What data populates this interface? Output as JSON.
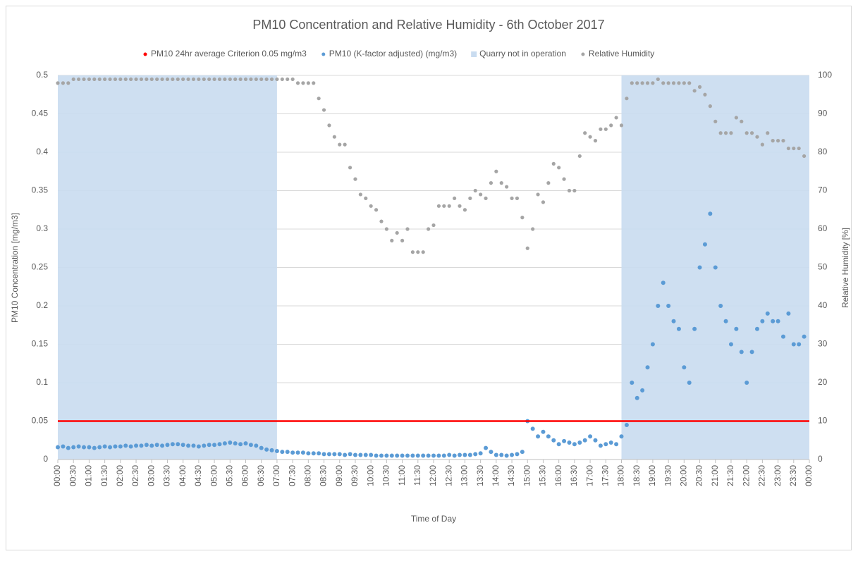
{
  "chart_data": {
    "type": "scatter",
    "title": "PM10 Concentration and Relative Humidity - 6th October 2017",
    "xlabel": "Time of Day",
    "ylabel": "PM10 Concentration [mg/m3]",
    "y2label": "Relative Humidity [%]",
    "xlim": [
      0,
      1440
    ],
    "xticks": [
      {
        "value": 0,
        "label": "00:00"
      },
      {
        "value": 30,
        "label": "00:30"
      },
      {
        "value": 60,
        "label": "01:00"
      },
      {
        "value": 90,
        "label": "01:30"
      },
      {
        "value": 120,
        "label": "02:00"
      },
      {
        "value": 150,
        "label": "02:30"
      },
      {
        "value": 180,
        "label": "03:00"
      },
      {
        "value": 210,
        "label": "03:30"
      },
      {
        "value": 240,
        "label": "04:00"
      },
      {
        "value": 270,
        "label": "04:30"
      },
      {
        "value": 300,
        "label": "05:00"
      },
      {
        "value": 330,
        "label": "05:30"
      },
      {
        "value": 360,
        "label": "06:00"
      },
      {
        "value": 390,
        "label": "06:30"
      },
      {
        "value": 420,
        "label": "07:00"
      },
      {
        "value": 450,
        "label": "07:30"
      },
      {
        "value": 480,
        "label": "08:00"
      },
      {
        "value": 510,
        "label": "08:30"
      },
      {
        "value": 540,
        "label": "09:00"
      },
      {
        "value": 570,
        "label": "09:30"
      },
      {
        "value": 600,
        "label": "10:00"
      },
      {
        "value": 630,
        "label": "10:30"
      },
      {
        "value": 660,
        "label": "11:00"
      },
      {
        "value": 690,
        "label": "11:30"
      },
      {
        "value": 720,
        "label": "12:00"
      },
      {
        "value": 750,
        "label": "12:30"
      },
      {
        "value": 780,
        "label": "13:00"
      },
      {
        "value": 810,
        "label": "13:30"
      },
      {
        "value": 840,
        "label": "14:00"
      },
      {
        "value": 870,
        "label": "14:30"
      },
      {
        "value": 900,
        "label": "15:00"
      },
      {
        "value": 930,
        "label": "15:30"
      },
      {
        "value": 960,
        "label": "16:00"
      },
      {
        "value": 990,
        "label": "16:30"
      },
      {
        "value": 1020,
        "label": "17:00"
      },
      {
        "value": 1050,
        "label": "17:30"
      },
      {
        "value": 1080,
        "label": "18:00"
      },
      {
        "value": 1110,
        "label": "18:30"
      },
      {
        "value": 1140,
        "label": "19:00"
      },
      {
        "value": 1170,
        "label": "19:30"
      },
      {
        "value": 1200,
        "label": "20:00"
      },
      {
        "value": 1230,
        "label": "20:30"
      },
      {
        "value": 1260,
        "label": "21:00"
      },
      {
        "value": 1290,
        "label": "21:30"
      },
      {
        "value": 1320,
        "label": "22:00"
      },
      {
        "value": 1350,
        "label": "22:30"
      },
      {
        "value": 1380,
        "label": "23:00"
      },
      {
        "value": 1410,
        "label": "23:30"
      },
      {
        "value": 1440,
        "label": "00:00"
      }
    ],
    "ylim": [
      0,
      0.5
    ],
    "yticks": [
      0,
      0.05,
      0.1,
      0.15,
      0.2,
      0.25,
      0.3,
      0.35,
      0.4,
      0.45,
      0.5
    ],
    "y2lim": [
      0,
      100
    ],
    "y2ticks": [
      0,
      10,
      20,
      30,
      40,
      50,
      60,
      70,
      80,
      90,
      100
    ],
    "grid": true,
    "legend": "top",
    "x": [
      0,
      10,
      20,
      30,
      40,
      50,
      60,
      70,
      80,
      90,
      100,
      110,
      120,
      130,
      140,
      150,
      160,
      170,
      180,
      190,
      200,
      210,
      220,
      230,
      240,
      250,
      260,
      270,
      280,
      290,
      300,
      310,
      320,
      330,
      340,
      350,
      360,
      370,
      380,
      390,
      400,
      410,
      420,
      430,
      440,
      450,
      460,
      470,
      480,
      490,
      500,
      510,
      520,
      530,
      540,
      550,
      560,
      570,
      580,
      590,
      600,
      610,
      620,
      630,
      640,
      650,
      660,
      670,
      680,
      690,
      700,
      710,
      720,
      730,
      740,
      750,
      760,
      770,
      780,
      790,
      800,
      810,
      820,
      830,
      840,
      850,
      860,
      870,
      880,
      890,
      900,
      910,
      920,
      930,
      940,
      950,
      960,
      970,
      980,
      990,
      1000,
      1010,
      1020,
      1030,
      1040,
      1050,
      1060,
      1070,
      1080,
      1090,
      1100,
      1110,
      1120,
      1130,
      1140,
      1150,
      1160,
      1170,
      1180,
      1190,
      1200,
      1210,
      1220,
      1230,
      1240,
      1250,
      1260,
      1270,
      1280,
      1290,
      1300,
      1310,
      1320,
      1330,
      1340,
      1350,
      1360,
      1370,
      1380,
      1390,
      1400,
      1410,
      1420,
      1430
    ],
    "series": [
      {
        "name": "PM10 24hr average Criterion 0.05 mg/m3",
        "color": "#ff0000",
        "style": "line",
        "x": [
          0,
          1440
        ],
        "values": [
          0.05,
          0.05
        ]
      },
      {
        "name": "PM10 (K-factor adjusted) (mg/m3)",
        "color": "#5b9bd5",
        "style": "scatter",
        "values": [
          0.016,
          0.017,
          0.015,
          0.016,
          0.017,
          0.016,
          0.016,
          0.015,
          0.016,
          0.017,
          0.016,
          0.017,
          0.017,
          0.018,
          0.017,
          0.018,
          0.018,
          0.019,
          0.018,
          0.019,
          0.018,
          0.019,
          0.02,
          0.02,
          0.019,
          0.018,
          0.018,
          0.017,
          0.018,
          0.019,
          0.019,
          0.02,
          0.021,
          0.022,
          0.021,
          0.02,
          0.021,
          0.019,
          0.018,
          0.015,
          0.013,
          0.012,
          0.011,
          0.01,
          0.01,
          0.009,
          0.009,
          0.009,
          0.008,
          0.008,
          0.008,
          0.007,
          0.007,
          0.007,
          0.007,
          0.006,
          0.007,
          0.006,
          0.006,
          0.006,
          0.006,
          0.005,
          0.005,
          0.005,
          0.005,
          0.005,
          0.005,
          0.005,
          0.005,
          0.005,
          0.005,
          0.005,
          0.005,
          0.005,
          0.005,
          0.006,
          0.005,
          0.006,
          0.006,
          0.006,
          0.007,
          0.008,
          0.015,
          0.01,
          0.006,
          0.006,
          0.005,
          0.006,
          0.007,
          0.01,
          0.05,
          0.04,
          0.03,
          0.036,
          0.03,
          0.025,
          0.02,
          0.024,
          0.022,
          0.02,
          0.022,
          0.025,
          0.03,
          0.025,
          0.018,
          0.02,
          0.022,
          0.02,
          0.03,
          0.045,
          0.1,
          0.08,
          0.09,
          0.12,
          0.15,
          0.2,
          0.23,
          0.2,
          0.18,
          0.17,
          0.12,
          0.1,
          0.17,
          0.25,
          0.28,
          0.32,
          0.25,
          0.2,
          0.18,
          0.15,
          0.17,
          0.14,
          0.1,
          0.14,
          0.17,
          0.18,
          0.19,
          0.18,
          0.18,
          0.16,
          0.19,
          0.15,
          0.15,
          0.16
        ]
      },
      {
        "name": "Quarry not in operation",
        "color": "#c9dcf0",
        "style": "band",
        "x_ranges": [
          [
            0,
            420
          ],
          [
            1080,
            1440
          ]
        ]
      },
      {
        "name": "Relative Humidity",
        "color": "#a5a5a5",
        "style": "scatter",
        "axis": "y2",
        "values": [
          98,
          98,
          98,
          99,
          99,
          99,
          99,
          99,
          99,
          99,
          99,
          99,
          99,
          99,
          99,
          99,
          99,
          99,
          99,
          99,
          99,
          99,
          99,
          99,
          99,
          99,
          99,
          99,
          99,
          99,
          99,
          99,
          99,
          99,
          99,
          99,
          99,
          99,
          99,
          99,
          99,
          99,
          99,
          99,
          99,
          99,
          98,
          98,
          98,
          98,
          94,
          91,
          87,
          84,
          82,
          82,
          76,
          73,
          69,
          68,
          66,
          65,
          62,
          60,
          57,
          59,
          57,
          60,
          54,
          54,
          54,
          60,
          61,
          66,
          66,
          66,
          68,
          66,
          65,
          68,
          70,
          69,
          68,
          72,
          75,
          72,
          71,
          68,
          68,
          63,
          55,
          60,
          69,
          67,
          72,
          77,
          76,
          73,
          70,
          70,
          79,
          85,
          84,
          83,
          86,
          86,
          87,
          89,
          87,
          94,
          98,
          98,
          98,
          98,
          98,
          99,
          98,
          98,
          98,
          98,
          98,
          98,
          96,
          97,
          95,
          92,
          88,
          85,
          85,
          85,
          89,
          88,
          85,
          85,
          84,
          82,
          85,
          83,
          83,
          83,
          81,
          81,
          81,
          79
        ]
      }
    ]
  }
}
